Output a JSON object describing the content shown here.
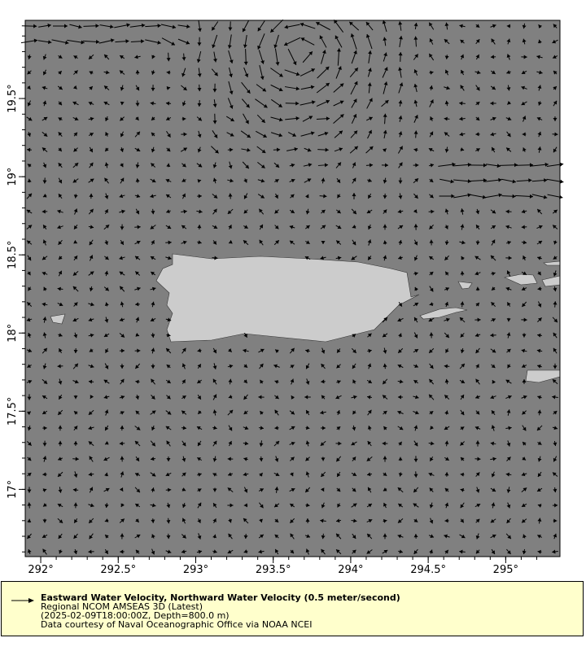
{
  "chart_data": {
    "type": "vector",
    "x_axis": {
      "range": [
        291.9,
        295.35
      ],
      "ticks": [
        292,
        292.5,
        293,
        293.5,
        294,
        294.5,
        295
      ],
      "tick_labels": [
        "292°",
        "292.5°",
        "293°",
        "293.5°",
        "294°",
        "294.5°",
        "295°"
      ]
    },
    "y_axis": {
      "range": [
        16.57,
        20.0
      ],
      "ticks": [
        17,
        17.5,
        18,
        18.5,
        19,
        19.5
      ],
      "tick_labels": [
        "17°",
        "17.5°",
        "18°",
        "18.5°",
        "19°",
        "19.5°"
      ]
    },
    "grid": false,
    "colors": {
      "ocean": "#808080",
      "land": "#cccccc",
      "vectors": "#000000",
      "legend_bg": "#ffffcc"
    },
    "reference_vector": "0.5 meter/second"
  },
  "legend": {
    "title": "Eastward Water Velocity, Northward Water Velocity (0.5 meter/second)",
    "line2": "Regional NCOM AMSEAS 3D (Latest)",
    "line3": "(2025-02-09T18:00:00Z, Depth=800.0 m)",
    "line4": "Data courtesy of Naval Oceanographic Office via NOAA NCEI"
  }
}
